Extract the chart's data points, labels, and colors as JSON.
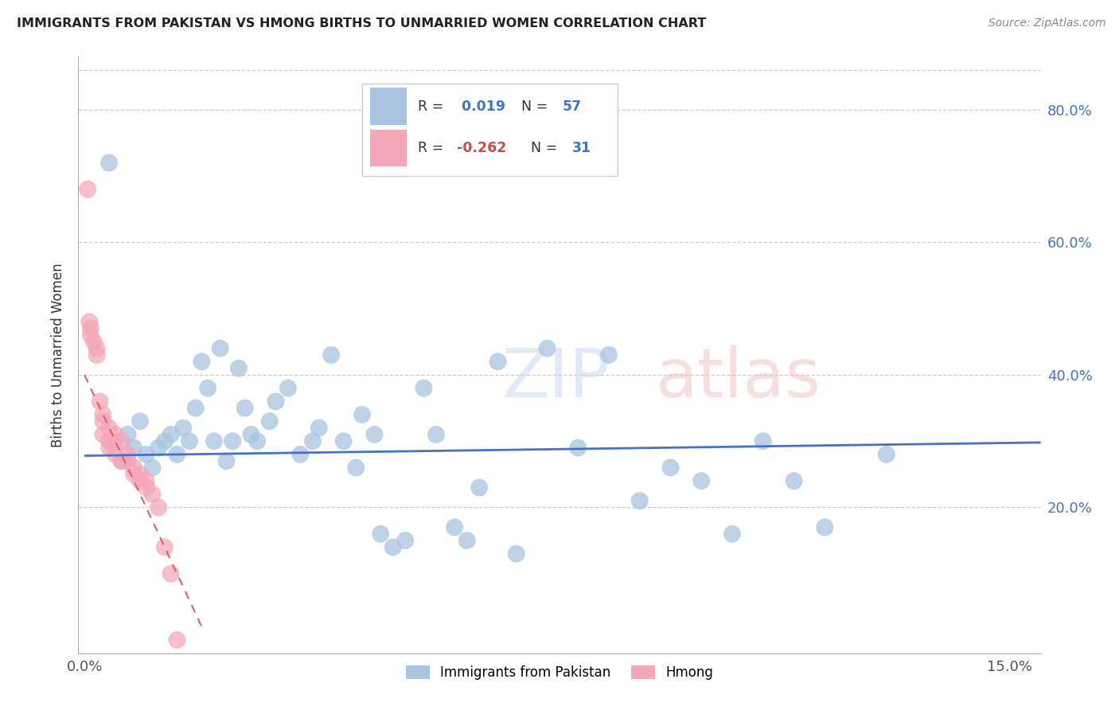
{
  "title": "IMMIGRANTS FROM PAKISTAN VS HMONG BIRTHS TO UNMARRIED WOMEN CORRELATION CHART",
  "source": "Source: ZipAtlas.com",
  "ylabel": "Births to Unmarried Women",
  "y_ticks": [
    0.2,
    0.4,
    0.6,
    0.8
  ],
  "y_tick_labels": [
    "20.0%",
    "40.0%",
    "60.0%",
    "80.0%"
  ],
  "xlim": [
    -0.001,
    0.155
  ],
  "ylim": [
    -0.02,
    0.88
  ],
  "color_pakistan": "#a8c4e0",
  "color_hmong": "#f4a7b9",
  "color_pakistan_line": "#4472c4",
  "color_hmong_line": "#e06060",
  "pakistan_scatter_x": [
    0.004,
    0.005,
    0.006,
    0.007,
    0.008,
    0.009,
    0.01,
    0.011,
    0.012,
    0.013,
    0.014,
    0.015,
    0.016,
    0.017,
    0.018,
    0.019,
    0.02,
    0.021,
    0.022,
    0.023,
    0.024,
    0.025,
    0.026,
    0.027,
    0.028,
    0.03,
    0.031,
    0.033,
    0.035,
    0.037,
    0.038,
    0.04,
    0.042,
    0.044,
    0.045,
    0.047,
    0.048,
    0.05,
    0.052,
    0.055,
    0.057,
    0.06,
    0.062,
    0.064,
    0.067,
    0.07,
    0.075,
    0.08,
    0.085,
    0.09,
    0.095,
    0.1,
    0.105,
    0.11,
    0.115,
    0.12,
    0.13
  ],
  "pakistan_scatter_y": [
    0.72,
    0.3,
    0.27,
    0.31,
    0.29,
    0.33,
    0.28,
    0.26,
    0.29,
    0.3,
    0.31,
    0.28,
    0.32,
    0.3,
    0.35,
    0.42,
    0.38,
    0.3,
    0.44,
    0.27,
    0.3,
    0.41,
    0.35,
    0.31,
    0.3,
    0.33,
    0.36,
    0.38,
    0.28,
    0.3,
    0.32,
    0.43,
    0.3,
    0.26,
    0.34,
    0.31,
    0.16,
    0.14,
    0.15,
    0.38,
    0.31,
    0.17,
    0.15,
    0.23,
    0.42,
    0.13,
    0.44,
    0.29,
    0.43,
    0.21,
    0.26,
    0.24,
    0.16,
    0.3,
    0.24,
    0.17,
    0.28
  ],
  "hmong_scatter_x": [
    0.0005,
    0.0008,
    0.001,
    0.001,
    0.0015,
    0.002,
    0.002,
    0.0025,
    0.003,
    0.003,
    0.003,
    0.004,
    0.004,
    0.004,
    0.005,
    0.005,
    0.006,
    0.006,
    0.007,
    0.007,
    0.008,
    0.008,
    0.009,
    0.009,
    0.01,
    0.01,
    0.011,
    0.012,
    0.013,
    0.014,
    0.015
  ],
  "hmong_scatter_y": [
    0.68,
    0.48,
    0.47,
    0.46,
    0.45,
    0.43,
    0.44,
    0.36,
    0.34,
    0.33,
    0.31,
    0.32,
    0.3,
    0.29,
    0.31,
    0.28,
    0.3,
    0.27,
    0.28,
    0.27,
    0.26,
    0.25,
    0.25,
    0.24,
    0.24,
    0.23,
    0.22,
    0.2,
    0.14,
    0.1,
    0.0
  ],
  "pakistan_line_x": [
    0.0,
    0.155
  ],
  "pakistan_line_y": [
    0.278,
    0.298
  ],
  "hmong_line_x": [
    0.0,
    0.019
  ],
  "hmong_line_y": [
    0.4,
    0.02
  ]
}
